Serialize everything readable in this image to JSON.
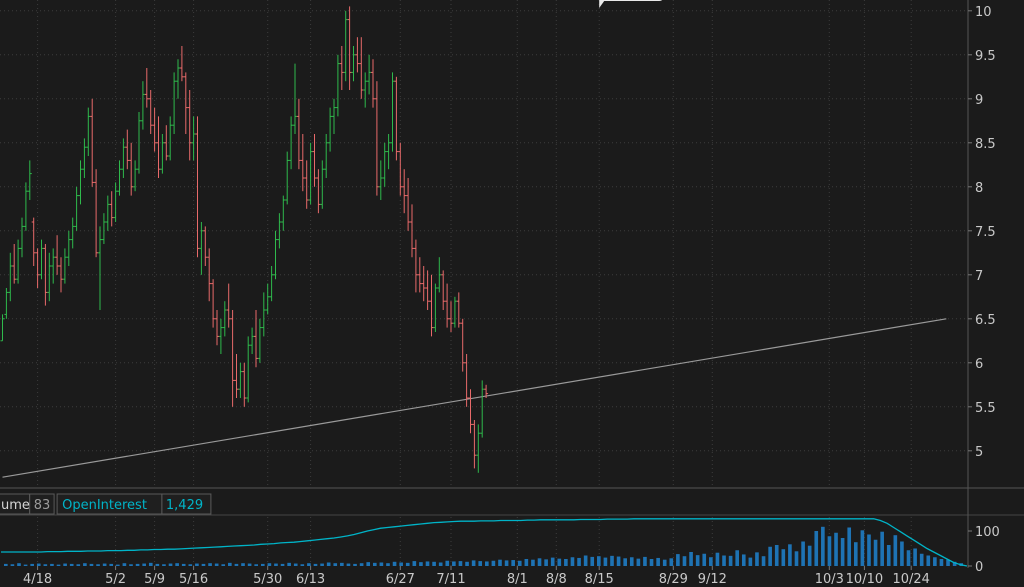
{
  "chart_data": {
    "type": "ohlc",
    "colors": {
      "up": "#2fb94c",
      "down": "#e86a6a",
      "grid": "#3c3c3c",
      "trendline": "#9a9a9a",
      "open_interest": "#00b4c8",
      "volume": "#1e73b4",
      "background": "#1b1b1b"
    },
    "price_axis": {
      "range": [
        4.6,
        10.1
      ],
      "ticks": [
        5,
        5.5,
        6,
        6.5,
        7,
        7.5,
        8,
        8.5,
        9,
        9.5,
        10
      ],
      "tick_labels": [
        "5",
        "5.5",
        "6",
        "6.5",
        "7",
        "7.5",
        "8",
        "8.5",
        "9",
        "9.5",
        "10"
      ]
    },
    "x_axis": {
      "labels": [
        "4/18",
        "5/2",
        "5/9",
        "5/16",
        "5/30",
        "6/13",
        "6/27",
        "7/11",
        "8/1",
        "8/8",
        "8/15",
        "8/29",
        "9/12",
        "10/3",
        "10/10",
        "10/24"
      ],
      "label_bar_index": [
        9,
        29,
        39,
        49,
        68,
        79,
        102,
        115,
        132,
        142,
        153,
        172,
        182,
        212,
        221,
        233
      ]
    },
    "bars": [
      {
        "o": 6.25,
        "h": 6.55,
        "l": 6.25,
        "c": 6.5
      },
      {
        "o": 6.55,
        "h": 6.85,
        "l": 6.5,
        "c": 6.8
      },
      {
        "o": 6.8,
        "h": 7.25,
        "l": 6.7,
        "c": 7.1
      },
      {
        "o": 7.1,
        "h": 7.35,
        "l": 6.9,
        "c": 6.95
      },
      {
        "o": 6.95,
        "h": 7.4,
        "l": 6.9,
        "c": 7.3
      },
      {
        "o": 7.3,
        "h": 7.65,
        "l": 7.2,
        "c": 7.55
      },
      {
        "o": 7.55,
        "h": 8.05,
        "l": 7.5,
        "c": 7.95
      },
      {
        "o": 7.95,
        "h": 8.3,
        "l": 7.85,
        "c": 8.15
      },
      {
        "o": 7.6,
        "h": 7.65,
        "l": 7.1,
        "c": 7.25
      },
      {
        "o": 7.25,
        "h": 7.3,
        "l": 6.85,
        "c": 7.0
      },
      {
        "o": 7.0,
        "h": 7.4,
        "l": 6.95,
        "c": 7.3
      },
      {
        "o": 7.3,
        "h": 7.35,
        "l": 6.65,
        "c": 6.8
      },
      {
        "o": 6.8,
        "h": 7.25,
        "l": 6.7,
        "c": 7.1
      },
      {
        "o": 7.1,
        "h": 7.3,
        "l": 6.9,
        "c": 7.2
      },
      {
        "o": 7.2,
        "h": 7.45,
        "l": 7.0,
        "c": 7.1
      },
      {
        "o": 7.1,
        "h": 7.2,
        "l": 6.8,
        "c": 6.95
      },
      {
        "o": 6.95,
        "h": 7.3,
        "l": 6.9,
        "c": 7.2
      },
      {
        "o": 7.2,
        "h": 7.5,
        "l": 7.1,
        "c": 7.4
      },
      {
        "o": 7.4,
        "h": 7.65,
        "l": 7.3,
        "c": 7.55
      },
      {
        "o": 7.55,
        "h": 8.0,
        "l": 7.5,
        "c": 7.9
      },
      {
        "o": 7.9,
        "h": 8.3,
        "l": 7.8,
        "c": 8.2
      },
      {
        "o": 8.2,
        "h": 8.55,
        "l": 8.1,
        "c": 8.45
      },
      {
        "o": 8.45,
        "h": 8.9,
        "l": 8.35,
        "c": 8.8
      },
      {
        "o": 8.8,
        "h": 9.0,
        "l": 8.0,
        "c": 8.05
      },
      {
        "o": 8.05,
        "h": 8.2,
        "l": 7.2,
        "c": 7.25
      },
      {
        "o": 7.25,
        "h": 7.55,
        "l": 6.6,
        "c": 7.4
      },
      {
        "o": 7.4,
        "h": 7.7,
        "l": 7.35,
        "c": 7.6
      },
      {
        "o": 7.6,
        "h": 7.9,
        "l": 7.5,
        "c": 7.8
      },
      {
        "o": 7.8,
        "h": 7.95,
        "l": 7.55,
        "c": 7.65
      },
      {
        "o": 7.65,
        "h": 8.05,
        "l": 7.6,
        "c": 7.95
      },
      {
        "o": 7.95,
        "h": 8.3,
        "l": 7.9,
        "c": 8.2
      },
      {
        "o": 8.2,
        "h": 8.55,
        "l": 8.1,
        "c": 8.45
      },
      {
        "o": 8.45,
        "h": 8.65,
        "l": 8.2,
        "c": 8.3
      },
      {
        "o": 8.3,
        "h": 8.5,
        "l": 7.9,
        "c": 8.0
      },
      {
        "o": 8.0,
        "h": 8.3,
        "l": 7.95,
        "c": 8.2
      },
      {
        "o": 8.2,
        "h": 8.85,
        "l": 8.15,
        "c": 8.75
      },
      {
        "o": 8.75,
        "h": 9.2,
        "l": 8.65,
        "c": 9.05
      },
      {
        "o": 9.05,
        "h": 9.35,
        "l": 8.9,
        "c": 9.0
      },
      {
        "o": 9.0,
        "h": 9.1,
        "l": 8.6,
        "c": 8.7
      },
      {
        "o": 8.7,
        "h": 8.9,
        "l": 8.4,
        "c": 8.5
      },
      {
        "o": 8.5,
        "h": 8.8,
        "l": 8.1,
        "c": 8.2
      },
      {
        "o": 8.2,
        "h": 8.6,
        "l": 8.15,
        "c": 8.5
      },
      {
        "o": 8.5,
        "h": 8.7,
        "l": 8.3,
        "c": 8.35
      },
      {
        "o": 8.35,
        "h": 8.8,
        "l": 8.3,
        "c": 8.7
      },
      {
        "o": 8.7,
        "h": 9.3,
        "l": 8.6,
        "c": 9.2
      },
      {
        "o": 9.2,
        "h": 9.45,
        "l": 9.0,
        "c": 9.35
      },
      {
        "o": 9.35,
        "h": 9.6,
        "l": 9.2,
        "c": 9.25
      },
      {
        "o": 9.25,
        "h": 9.3,
        "l": 8.6,
        "c": 8.9
      },
      {
        "o": 8.9,
        "h": 9.1,
        "l": 8.3,
        "c": 8.5
      },
      {
        "o": 8.5,
        "h": 8.8,
        "l": 8.3,
        "c": 8.6
      },
      {
        "o": 8.6,
        "h": 8.8,
        "l": 7.2,
        "c": 7.3
      },
      {
        "o": 7.3,
        "h": 7.6,
        "l": 7.0,
        "c": 7.5
      },
      {
        "o": 7.5,
        "h": 7.55,
        "l": 7.1,
        "c": 7.2
      },
      {
        "o": 7.2,
        "h": 7.3,
        "l": 6.7,
        "c": 6.9
      },
      {
        "o": 6.9,
        "h": 6.95,
        "l": 6.4,
        "c": 6.5
      },
      {
        "o": 6.5,
        "h": 6.6,
        "l": 6.2,
        "c": 6.3
      },
      {
        "o": 6.3,
        "h": 6.5,
        "l": 6.1,
        "c": 6.4
      },
      {
        "o": 6.4,
        "h": 6.7,
        "l": 6.3,
        "c": 6.6
      },
      {
        "o": 6.6,
        "h": 6.9,
        "l": 6.4,
        "c": 6.5
      },
      {
        "o": 6.5,
        "h": 6.6,
        "l": 5.5,
        "c": 5.8
      },
      {
        "o": 5.8,
        "h": 6.1,
        "l": 5.6,
        "c": 5.7
      },
      {
        "o": 5.7,
        "h": 6.0,
        "l": 5.6,
        "c": 5.9
      },
      {
        "o": 5.9,
        "h": 6.0,
        "l": 5.5,
        "c": 5.6
      },
      {
        "o": 5.6,
        "h": 6.3,
        "l": 5.55,
        "c": 6.2
      },
      {
        "o": 6.2,
        "h": 6.4,
        "l": 6.1,
        "c": 6.3
      },
      {
        "o": 6.3,
        "h": 6.6,
        "l": 5.95,
        "c": 6.05
      },
      {
        "o": 6.05,
        "h": 6.5,
        "l": 6.0,
        "c": 6.4
      },
      {
        "o": 6.4,
        "h": 6.8,
        "l": 6.3,
        "c": 6.6
      },
      {
        "o": 6.6,
        "h": 6.9,
        "l": 6.55,
        "c": 6.75
      },
      {
        "o": 6.75,
        "h": 7.1,
        "l": 6.7,
        "c": 7.0
      },
      {
        "o": 7.0,
        "h": 7.5,
        "l": 6.95,
        "c": 7.4
      },
      {
        "o": 7.4,
        "h": 7.7,
        "l": 7.3,
        "c": 7.6
      },
      {
        "o": 7.6,
        "h": 7.9,
        "l": 7.5,
        "c": 7.85
      },
      {
        "o": 7.85,
        "h": 8.4,
        "l": 7.8,
        "c": 8.3
      },
      {
        "o": 8.3,
        "h": 8.8,
        "l": 8.2,
        "c": 8.7
      },
      {
        "o": 8.7,
        "h": 9.4,
        "l": 8.6,
        "c": 8.8
      },
      {
        "o": 8.8,
        "h": 9.0,
        "l": 8.2,
        "c": 8.3
      },
      {
        "o": 8.3,
        "h": 8.6,
        "l": 7.95,
        "c": 8.1
      },
      {
        "o": 8.1,
        "h": 8.3,
        "l": 7.75,
        "c": 7.85
      },
      {
        "o": 7.85,
        "h": 8.5,
        "l": 7.8,
        "c": 8.4
      },
      {
        "o": 8.4,
        "h": 8.6,
        "l": 8.0,
        "c": 8.1
      },
      {
        "o": 8.1,
        "h": 8.2,
        "l": 7.7,
        "c": 7.8
      },
      {
        "o": 7.8,
        "h": 8.3,
        "l": 7.75,
        "c": 8.2
      },
      {
        "o": 8.2,
        "h": 8.6,
        "l": 8.1,
        "c": 8.5
      },
      {
        "o": 8.5,
        "h": 8.9,
        "l": 8.4,
        "c": 8.8
      },
      {
        "o": 8.8,
        "h": 9.0,
        "l": 8.6,
        "c": 8.9
      },
      {
        "o": 8.9,
        "h": 9.5,
        "l": 8.8,
        "c": 9.4
      },
      {
        "o": 9.4,
        "h": 9.6,
        "l": 9.1,
        "c": 9.3
      },
      {
        "o": 9.3,
        "h": 10.0,
        "l": 9.2,
        "c": 9.9
      },
      {
        "o": 9.9,
        "h": 10.05,
        "l": 9.1,
        "c": 9.3
      },
      {
        "o": 9.3,
        "h": 9.6,
        "l": 9.2,
        "c": 9.5
      },
      {
        "o": 9.5,
        "h": 9.7,
        "l": 9.3,
        "c": 9.4
      },
      {
        "o": 9.4,
        "h": 9.7,
        "l": 9.0,
        "c": 9.1
      },
      {
        "o": 9.1,
        "h": 9.3,
        "l": 8.9,
        "c": 9.2
      },
      {
        "o": 9.2,
        "h": 9.5,
        "l": 9.05,
        "c": 9.3
      },
      {
        "o": 9.3,
        "h": 9.45,
        "l": 8.9,
        "c": 9.0
      },
      {
        "o": 9.0,
        "h": 9.2,
        "l": 7.9,
        "c": 8.0
      },
      {
        "o": 8.0,
        "h": 8.3,
        "l": 7.85,
        "c": 8.1
      },
      {
        "o": 8.1,
        "h": 8.5,
        "l": 8.0,
        "c": 8.4
      },
      {
        "o": 8.4,
        "h": 8.6,
        "l": 8.2,
        "c": 8.5
      },
      {
        "o": 8.5,
        "h": 9.3,
        "l": 8.4,
        "c": 9.2
      },
      {
        "o": 9.2,
        "h": 9.25,
        "l": 8.3,
        "c": 8.4
      },
      {
        "o": 8.4,
        "h": 8.5,
        "l": 7.9,
        "c": 8.0
      },
      {
        "o": 8.0,
        "h": 8.2,
        "l": 7.7,
        "c": 7.9
      },
      {
        "o": 7.9,
        "h": 8.1,
        "l": 7.5,
        "c": 7.6
      },
      {
        "o": 7.6,
        "h": 7.8,
        "l": 7.2,
        "c": 7.3
      },
      {
        "o": 7.3,
        "h": 7.4,
        "l": 6.8,
        "c": 7.0
      },
      {
        "o": 7.0,
        "h": 7.2,
        "l": 6.8,
        "c": 6.9
      },
      {
        "o": 6.9,
        "h": 7.1,
        "l": 6.7,
        "c": 6.85
      },
      {
        "o": 6.85,
        "h": 7.05,
        "l": 6.6,
        "c": 6.7
      },
      {
        "o": 6.7,
        "h": 7.0,
        "l": 6.3,
        "c": 6.4
      },
      {
        "o": 6.4,
        "h": 6.9,
        "l": 6.35,
        "c": 6.85
      },
      {
        "o": 6.85,
        "h": 7.2,
        "l": 6.8,
        "c": 7.0
      },
      {
        "o": 7.0,
        "h": 7.05,
        "l": 6.6,
        "c": 6.7
      },
      {
        "o": 6.7,
        "h": 6.9,
        "l": 6.4,
        "c": 6.5
      },
      {
        "o": 6.5,
        "h": 6.7,
        "l": 6.35,
        "c": 6.45
      },
      {
        "o": 6.45,
        "h": 6.75,
        "l": 6.4,
        "c": 6.7
      },
      {
        "o": 6.7,
        "h": 6.8,
        "l": 6.4,
        "c": 6.45
      },
      {
        "o": 6.45,
        "h": 6.5,
        "l": 5.9,
        "c": 6.0
      },
      {
        "o": 6.0,
        "h": 6.1,
        "l": 5.5,
        "c": 5.6
      },
      {
        "o": 5.6,
        "h": 5.7,
        "l": 5.2,
        "c": 5.3
      },
      {
        "o": 5.3,
        "h": 5.35,
        "l": 4.8,
        "c": 4.95
      },
      {
        "o": 4.95,
        "h": 5.3,
        "l": 4.75,
        "c": 5.2
      },
      {
        "o": 5.2,
        "h": 5.8,
        "l": 5.15,
        "c": 5.7
      },
      {
        "o": 5.7,
        "h": 5.75,
        "l": 5.6,
        "c": 5.65
      }
    ],
    "trendline": {
      "from": {
        "bar": 0,
        "price": 4.7
      },
      "to": {
        "bar": 242,
        "price": 6.5
      }
    },
    "bubble_marker_bar_index": 153,
    "lower_panel": {
      "legend": [
        {
          "label": "ume",
          "value": "83"
        },
        {
          "label": "OpenInterest",
          "value": "1,429"
        }
      ],
      "axis": {
        "range": [
          0,
          140
        ],
        "ticks": [
          0,
          100
        ],
        "tick_labels": [
          "0",
          "100"
        ]
      },
      "volume": [
        6,
        5,
        8,
        4,
        6,
        7,
        5,
        6,
        4,
        7,
        6,
        5,
        8,
        6,
        5,
        7,
        6,
        4,
        8,
        5,
        6,
        7,
        9,
        6,
        5,
        7,
        8,
        6,
        5,
        7,
        6,
        8,
        7,
        5,
        9,
        6,
        8,
        7,
        5,
        6,
        8,
        7,
        6,
        9,
        7,
        5,
        8,
        6,
        7,
        10,
        8,
        9,
        7,
        6,
        8,
        11,
        9,
        10,
        8,
        12,
        10,
        9,
        14,
        11,
        13,
        12,
        10,
        15,
        13,
        14,
        12,
        16,
        14,
        13,
        15,
        18,
        16,
        17,
        15,
        20,
        18,
        22,
        19,
        24,
        21,
        20,
        25,
        23,
        30,
        26,
        28,
        24,
        29,
        27,
        22,
        25,
        21,
        26,
        20,
        23,
        18,
        22,
        34,
        28,
        40,
        31,
        35,
        25,
        38,
        30,
        29,
        45,
        33,
        24,
        39,
        28,
        55,
        60,
        48,
        62,
        42,
        70,
        58,
        100,
        112,
        85,
        95,
        80,
        110,
        68,
        102,
        90,
        75,
        98,
        60,
        88,
        70,
        45,
        50,
        35,
        30,
        25,
        20,
        18,
        12,
        8
      ],
      "open_interest": [
        40,
        40,
        40,
        40,
        40,
        40,
        40,
        41,
        41,
        41,
        42,
        42,
        42,
        43,
        43,
        43,
        44,
        44,
        44,
        45,
        45,
        46,
        46,
        47,
        47,
        48,
        48,
        49,
        50,
        51,
        52,
        53,
        54,
        55,
        56,
        57,
        58,
        59,
        60,
        62,
        63,
        64,
        66,
        67,
        68,
        70,
        72,
        74,
        76,
        78,
        80,
        83,
        86,
        90,
        95,
        100,
        104,
        108,
        110,
        112,
        114,
        116,
        118,
        120,
        122,
        124,
        125,
        126,
        127,
        128,
        128,
        128,
        129,
        129,
        129,
        130,
        130,
        130,
        130,
        131,
        131,
        132,
        132,
        132,
        132,
        132,
        132,
        133,
        133,
        133,
        133,
        134,
        134,
        134,
        134,
        135,
        135,
        135,
        135,
        135,
        135,
        135,
        135,
        135,
        135,
        135,
        135,
        135,
        135,
        135,
        135,
        135,
        135,
        135,
        135,
        135,
        135,
        135,
        135,
        135,
        135,
        135,
        135,
        135,
        135,
        135,
        135,
        135,
        135,
        135,
        135,
        135,
        130,
        122,
        110,
        98,
        86,
        74,
        62,
        50,
        40,
        30,
        20,
        10,
        4,
        0
      ]
    }
  }
}
